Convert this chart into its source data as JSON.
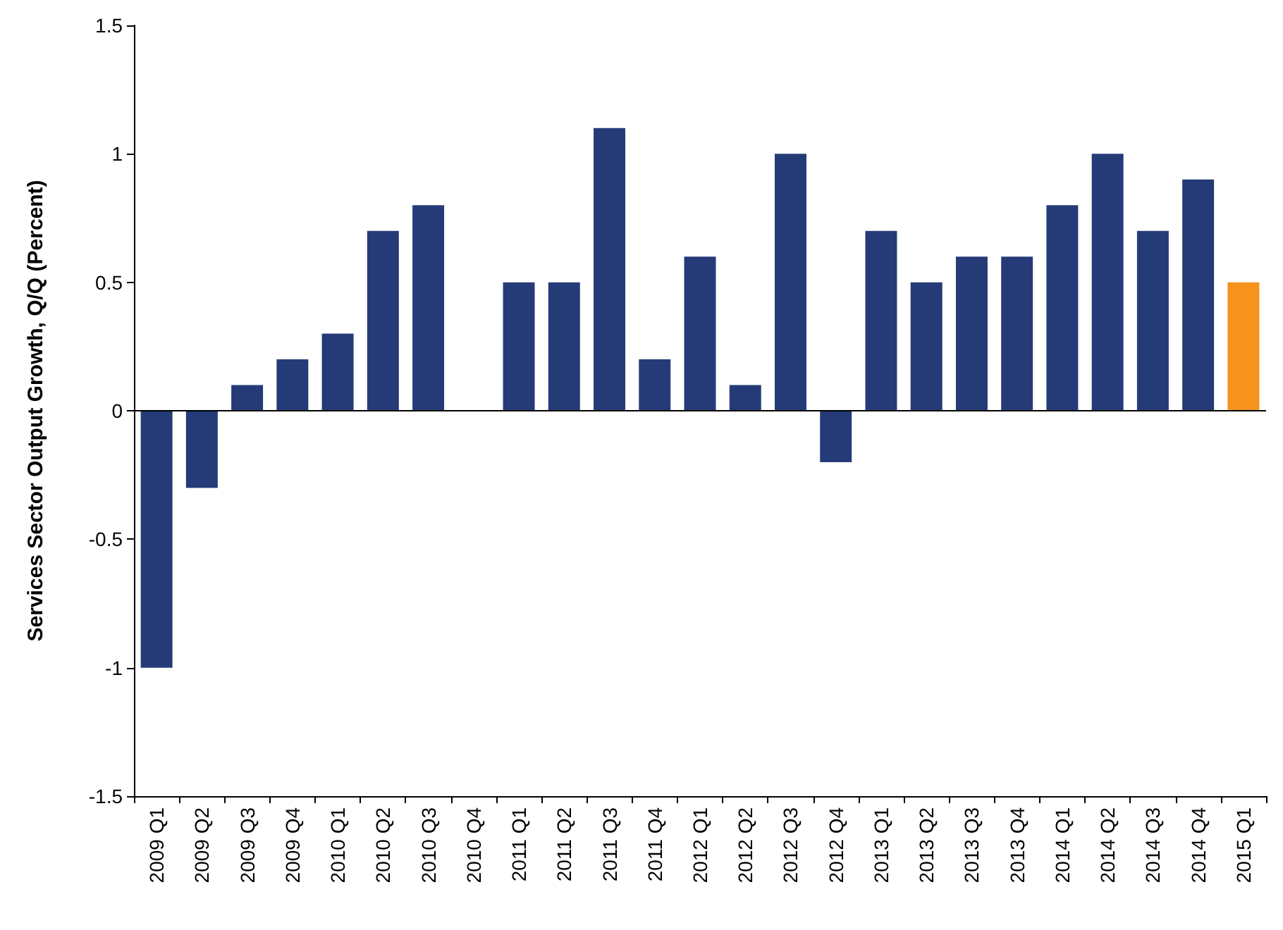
{
  "chart_data": {
    "type": "bar",
    "ylabel": "Services Sector Output Growth, Q/Q (Percent)",
    "categories": [
      "2009 Q1",
      "2009 Q2",
      "2009 Q3",
      "2009 Q4",
      "2010 Q1",
      "2010 Q2",
      "2010 Q3",
      "2010 Q4",
      "2011 Q1",
      "2011 Q2",
      "2011 Q3",
      "2011 Q4",
      "2012 Q1",
      "2012 Q2",
      "2012 Q3",
      "2012 Q4",
      "2013 Q1",
      "2013 Q2",
      "2013 Q3",
      "2013 Q4",
      "2014 Q1",
      "2014 Q2",
      "2014 Q3",
      "2014 Q4",
      "2015 Q1"
    ],
    "values": [
      -1,
      -0.3,
      0.1,
      0.2,
      0.3,
      0.7,
      0.8,
      0,
      0.5,
      0.5,
      1.1,
      0.2,
      0.6,
      0.1,
      1.0,
      -0.2,
      0.7,
      0.5,
      0.6,
      0.6,
      0.8,
      1.0,
      0.7,
      0.9,
      0.5
    ],
    "colors": [
      "#253b77",
      "#253b77",
      "#253b77",
      "#253b77",
      "#253b77",
      "#253b77",
      "#253b77",
      "#253b77",
      "#253b77",
      "#253b77",
      "#253b77",
      "#253b77",
      "#253b77",
      "#253b77",
      "#253b77",
      "#253b77",
      "#253b77",
      "#253b77",
      "#253b77",
      "#253b77",
      "#253b77",
      "#253b77",
      "#253b77",
      "#253b77",
      "#f6921e"
    ],
    "ylim": [
      -1.5,
      1.5
    ],
    "yticks": [
      -1.5,
      -1,
      -0.5,
      0,
      0.5,
      1,
      1.5
    ],
    "ref_lines": [
      {
        "axis": "y",
        "value": 0,
        "color": "#000000"
      }
    ],
    "grid": false
  }
}
